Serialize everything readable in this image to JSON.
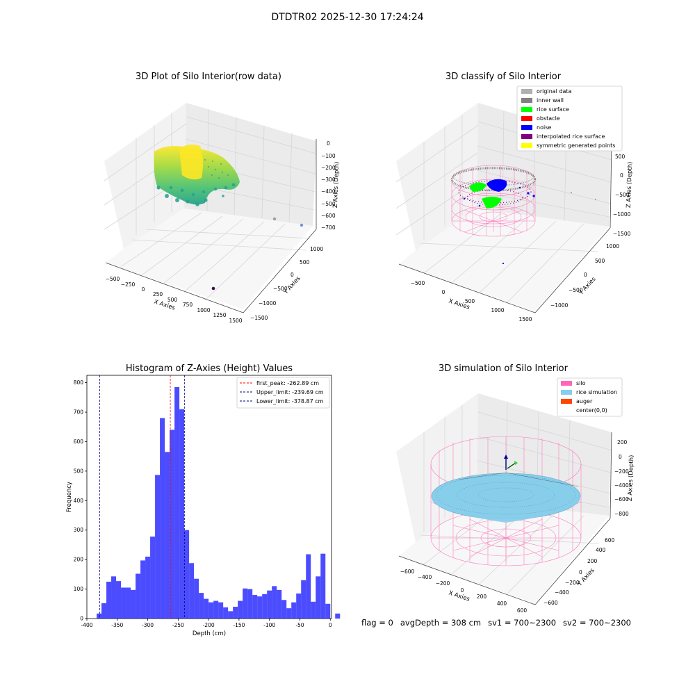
{
  "figure": {
    "title": "DTDTR02 2025-12-30 17:24:24"
  },
  "panels": {
    "raw": {
      "title": "3D Plot of Silo Interior(row data)",
      "xlabel": "X Axies",
      "ylabel": "Y Axies",
      "zlabel": "Z Axies (Depth)",
      "xticks": [
        "−500",
        "−250",
        "0",
        "250",
        "500",
        "750",
        "1000",
        "1250",
        "1500"
      ],
      "yticks": [
        "−1500",
        "−1000",
        "−500",
        "0",
        "500",
        "1000"
      ],
      "zticks": [
        "0",
        "−100",
        "−200",
        "−300",
        "−400",
        "−500",
        "−600",
        "−700"
      ]
    },
    "classify": {
      "title": "3D classify of Silo Interior",
      "xlabel": "X Axies",
      "ylabel": "Y Axies",
      "zlabel": "Z Axies (Depth)",
      "xticks": [
        "−500",
        "0",
        "500",
        "1000",
        "1500"
      ],
      "yticks": [
        "−1000",
        "−500",
        "0",
        "500",
        "1000"
      ],
      "zticks": [
        "500",
        "0",
        "−500",
        "−1000",
        "−1500"
      ],
      "legend": [
        {
          "label": "original data",
          "color": "#b0b0b0"
        },
        {
          "label": "inner wall",
          "color": "#808080"
        },
        {
          "label": "rice surface",
          "color": "#00ff00"
        },
        {
          "label": "obstacle",
          "color": "#ff0000"
        },
        {
          "label": "noise",
          "color": "#0000ff"
        },
        {
          "label": "interpolated rice surface",
          "color": "#800080"
        },
        {
          "label": "symmetric generated points",
          "color": "#ffff00"
        }
      ]
    },
    "simulation": {
      "title": "3D simulation of Silo Interior",
      "xlabel": "X Axies",
      "ylabel": "Y Axies",
      "zlabel": "Z Axies (Depth)",
      "xticks": [
        "−600",
        "−400",
        "−200",
        "0",
        "200",
        "400",
        "600"
      ],
      "yticks": [
        "−600",
        "−400",
        "−200",
        "0",
        "200",
        "400",
        "600"
      ],
      "zticks": [
        "200",
        "0",
        "−200",
        "−400",
        "−600",
        "−800"
      ],
      "legend": [
        {
          "label": "silo",
          "color": "#ff69b4"
        },
        {
          "label": "rice simulation",
          "color": "#87ceeb"
        },
        {
          "label": "auger",
          "color": "#ff4500"
        },
        {
          "label": "center(0,0)",
          "color": "#ffffff"
        }
      ]
    }
  },
  "chart_data": {
    "type": "bar",
    "title": "Histogram of Z-Axies (Height) Values",
    "xlabel": "Depth (cm)",
    "ylabel": "Frequency",
    "xlim": [
      -400,
      2
    ],
    "ylim": [
      0,
      825
    ],
    "xticks": [
      -400,
      -350,
      -300,
      -250,
      -200,
      -150,
      -100,
      -50,
      0
    ],
    "yticks": [
      0,
      100,
      200,
      300,
      400,
      500,
      600,
      700,
      800
    ],
    "bin_start": -384,
    "bin_width": 8,
    "values": [
      17,
      52,
      125,
      143,
      127,
      105,
      105,
      97,
      152,
      197,
      210,
      278,
      487,
      680,
      565,
      640,
      785,
      710,
      300,
      188,
      135,
      87,
      67,
      55,
      60,
      55,
      38,
      25,
      40,
      60,
      102,
      100,
      80,
      75,
      83,
      95,
      110,
      97,
      63,
      35,
      55,
      85,
      130,
      218,
      57,
      143,
      220,
      50,
      0,
      17
    ],
    "bar_color": "#0000ff",
    "vlines": [
      {
        "label": "first_peak: -262.89 cm",
        "x": -262.89,
        "color": "#ff0000"
      },
      {
        "label": "Upper_limit: -239.69 cm",
        "x": -239.69,
        "color": "#00008b"
      },
      {
        "label": "Lower_limit: -378.87 cm",
        "x": -378.87,
        "color": "#00008b"
      }
    ],
    "legend_position": "top-right"
  },
  "status": {
    "flag": "flag = 0",
    "avg_depth": "avgDepth = 308 cm",
    "sv1": "sv1 = 700~2300",
    "sv2": "sv2 = 700~2300"
  }
}
